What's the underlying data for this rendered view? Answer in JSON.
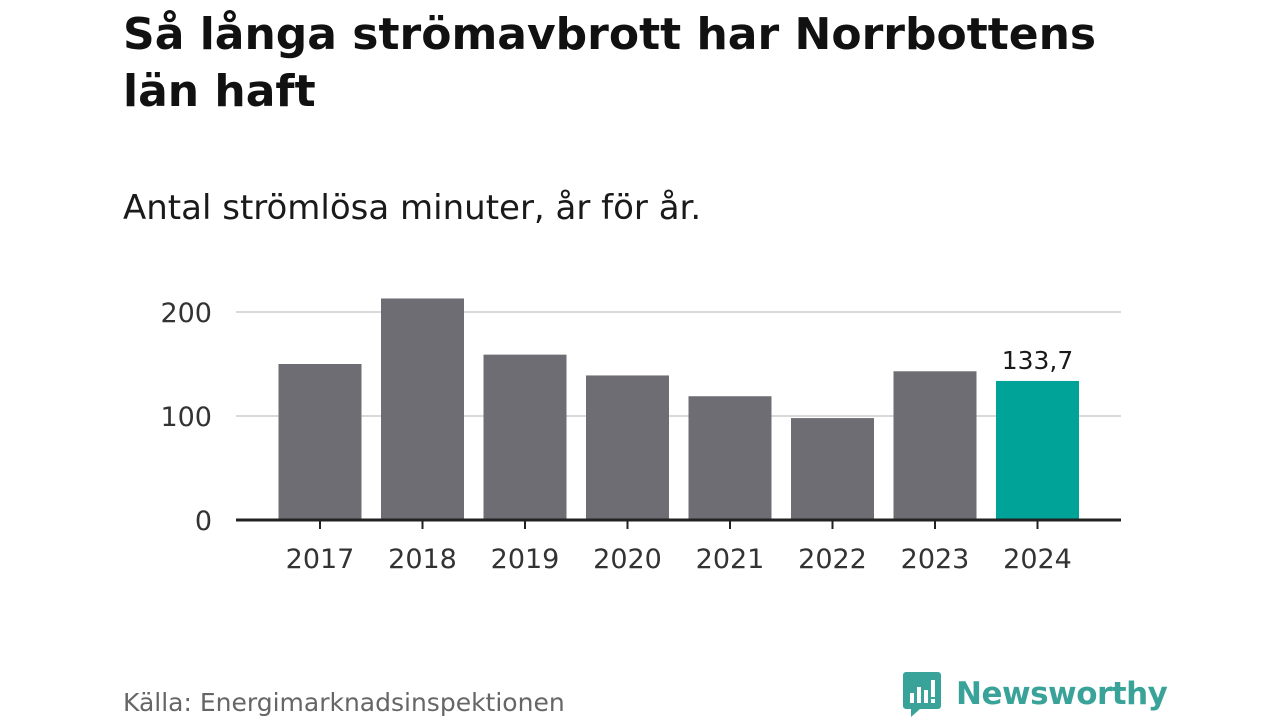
{
  "title": "Så långa strömavbrott har Norrbottens län haft",
  "subtitle": "Antal strömlösa minuter, år för år.",
  "source": "Källa: Energimarknadsinspektionen",
  "brand": "Newsworthy",
  "colors": {
    "bar": "#6e6d73",
    "highlight": "#00a398",
    "grid": "#d9d9d9",
    "axis": "#222222",
    "brand": "#3aa399"
  },
  "chart_data": {
    "type": "bar",
    "categories": [
      "2017",
      "2018",
      "2019",
      "2020",
      "2021",
      "2022",
      "2023",
      "2024"
    ],
    "values": [
      150,
      213,
      159,
      139,
      119,
      98,
      143,
      133.7
    ],
    "highlight_index": 7,
    "data_labels": [
      {
        "index": 7,
        "text": "133,7"
      }
    ],
    "y_ticks": [
      0,
      100,
      200
    ],
    "y_tick_labels": [
      "0",
      "100",
      "200"
    ],
    "ylim": [
      0,
      220
    ],
    "grid": true,
    "xlabel": "",
    "ylabel": ""
  }
}
